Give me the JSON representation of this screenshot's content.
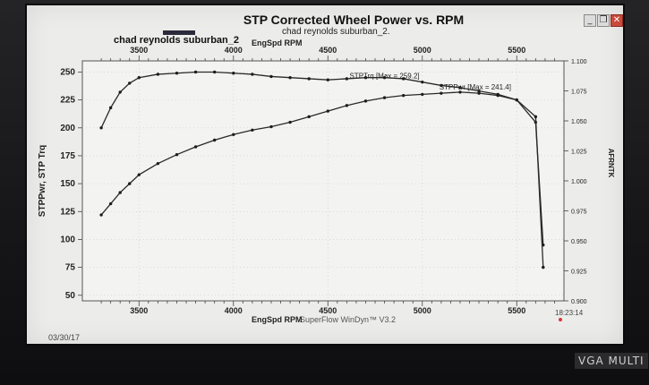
{
  "window": {
    "minimize_glyph": "_",
    "restore_glyph": "❐",
    "close_glyph": "✕"
  },
  "chart_data": {
    "type": "line",
    "title": "STP Corrected Wheel Power vs. RPM",
    "subtitle": "chad reynolds suburban_2.",
    "legend": [
      "chad reynolds suburban_2"
    ],
    "top_axis_label": "EngSpd RPM",
    "top_axis_ticks": [
      3500,
      4000,
      4500,
      5000,
      5500
    ],
    "xlabel": "EngSpd RPM",
    "x_ticks": [
      3500,
      4000,
      4500,
      5000,
      5500
    ],
    "xlim": [
      3200,
      5750
    ],
    "ylabel": "STPPwr, STP Trq",
    "y_ticks": [
      50,
      75,
      100,
      125,
      150,
      175,
      200,
      225,
      250
    ],
    "ylim": [
      45,
      260
    ],
    "y2label": "AFRNTK",
    "y2_ticks": [
      "0.900",
      "0.925",
      "0.950",
      "0.975",
      "1.000",
      "1.025",
      "1.050",
      "1.075",
      "1.100"
    ],
    "grid": true,
    "series": [
      {
        "name": "STPTrq",
        "annotation": "STPTrq [Max = 259.2]",
        "x": [
          3300,
          3350,
          3400,
          3450,
          3500,
          3600,
          3700,
          3800,
          3900,
          4000,
          4100,
          4200,
          4300,
          4400,
          4500,
          4600,
          4700,
          4800,
          4900,
          5000,
          5100,
          5200,
          5300,
          5400,
          5500,
          5600,
          5640
        ],
        "values": [
          200,
          218,
          232,
          240,
          245,
          248,
          249,
          250,
          250,
          249,
          248,
          246,
          245,
          244,
          243,
          244,
          245,
          245,
          244,
          241,
          238,
          236,
          233,
          230,
          225,
          205,
          95
        ]
      },
      {
        "name": "STPPwr",
        "annotation": "STPPwr [Max = 241.4]",
        "x": [
          3300,
          3350,
          3400,
          3450,
          3500,
          3600,
          3700,
          3800,
          3900,
          4000,
          4100,
          4200,
          4300,
          4400,
          4500,
          4600,
          4700,
          4800,
          4900,
          5000,
          5100,
          5200,
          5300,
          5400,
          5500,
          5600,
          5640
        ],
        "values": [
          122,
          132,
          142,
          150,
          158,
          168,
          176,
          183,
          189,
          194,
          198,
          201,
          205,
          210,
          215,
          220,
          224,
          227,
          229,
          230,
          231,
          232,
          231,
          229,
          225,
          210,
          75
        ]
      }
    ]
  },
  "footer": {
    "date": "03/30/17",
    "time": "18:23:14",
    "program": "SuperFlow WinDyn™ V3.2"
  },
  "monitor": {
    "label": "VGA MULTI"
  }
}
